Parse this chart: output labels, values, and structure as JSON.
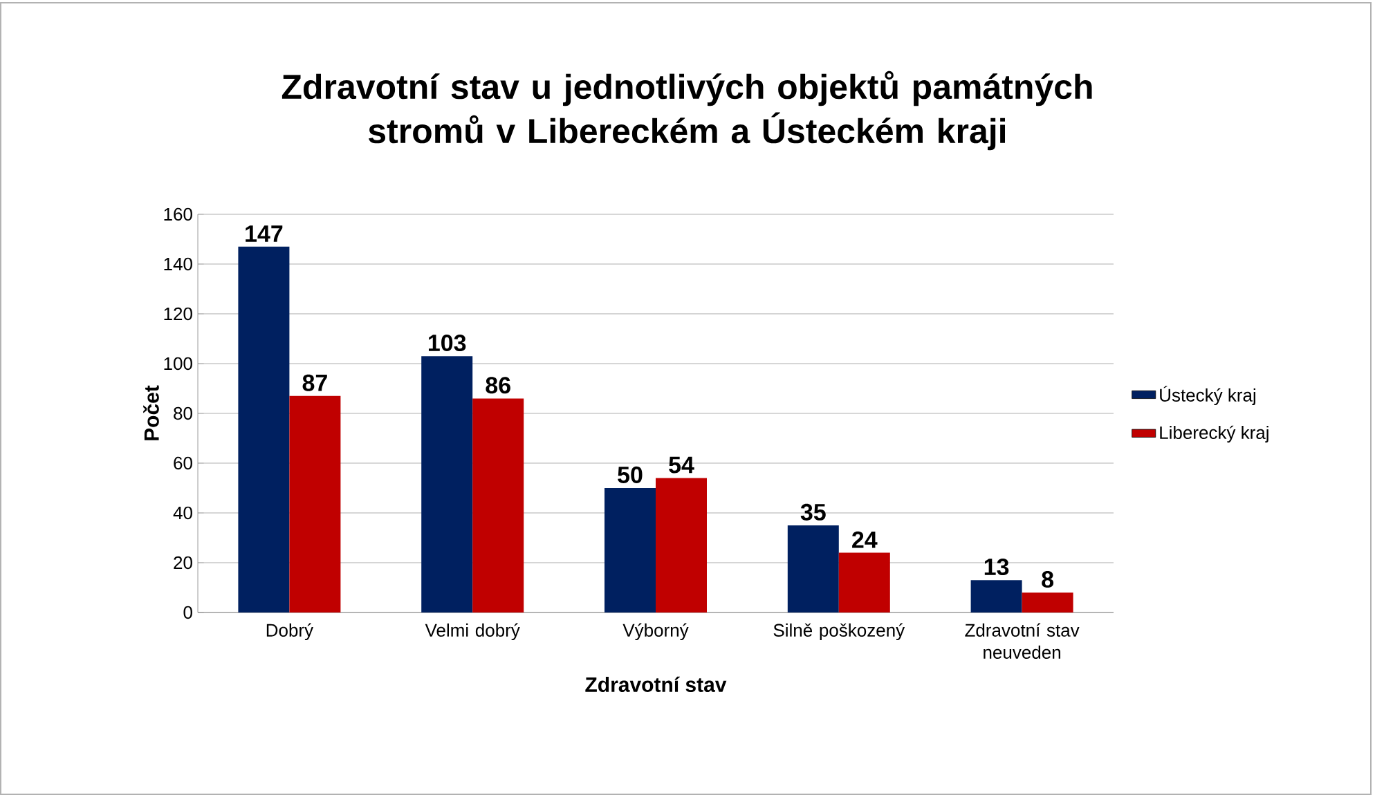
{
  "chart_data": {
    "type": "bar",
    "title": "Zdravotní stav u jednotlivých objektů památných stromů v Libereckém a Ústeckém kraji",
    "xlabel": "Zdravotní stav",
    "ylabel": "Počet",
    "categories": [
      "Dobrý",
      "Velmi dobrý",
      "Výborný",
      "Silně poškozený",
      "Zdravotní stav neuveden"
    ],
    "series": [
      {
        "name": "Ústecký kraj",
        "color": "#002060",
        "values": [
          147,
          103,
          50,
          35,
          13
        ]
      },
      {
        "name": "Liberecký kraj",
        "color": "#c00000",
        "values": [
          87,
          86,
          54,
          24,
          8
        ]
      }
    ],
    "ylim": [
      0,
      160
    ],
    "yticks": [
      0,
      20,
      40,
      60,
      80,
      100,
      120,
      140,
      160
    ],
    "grid": "y",
    "legend": "right",
    "data_labels": true
  }
}
